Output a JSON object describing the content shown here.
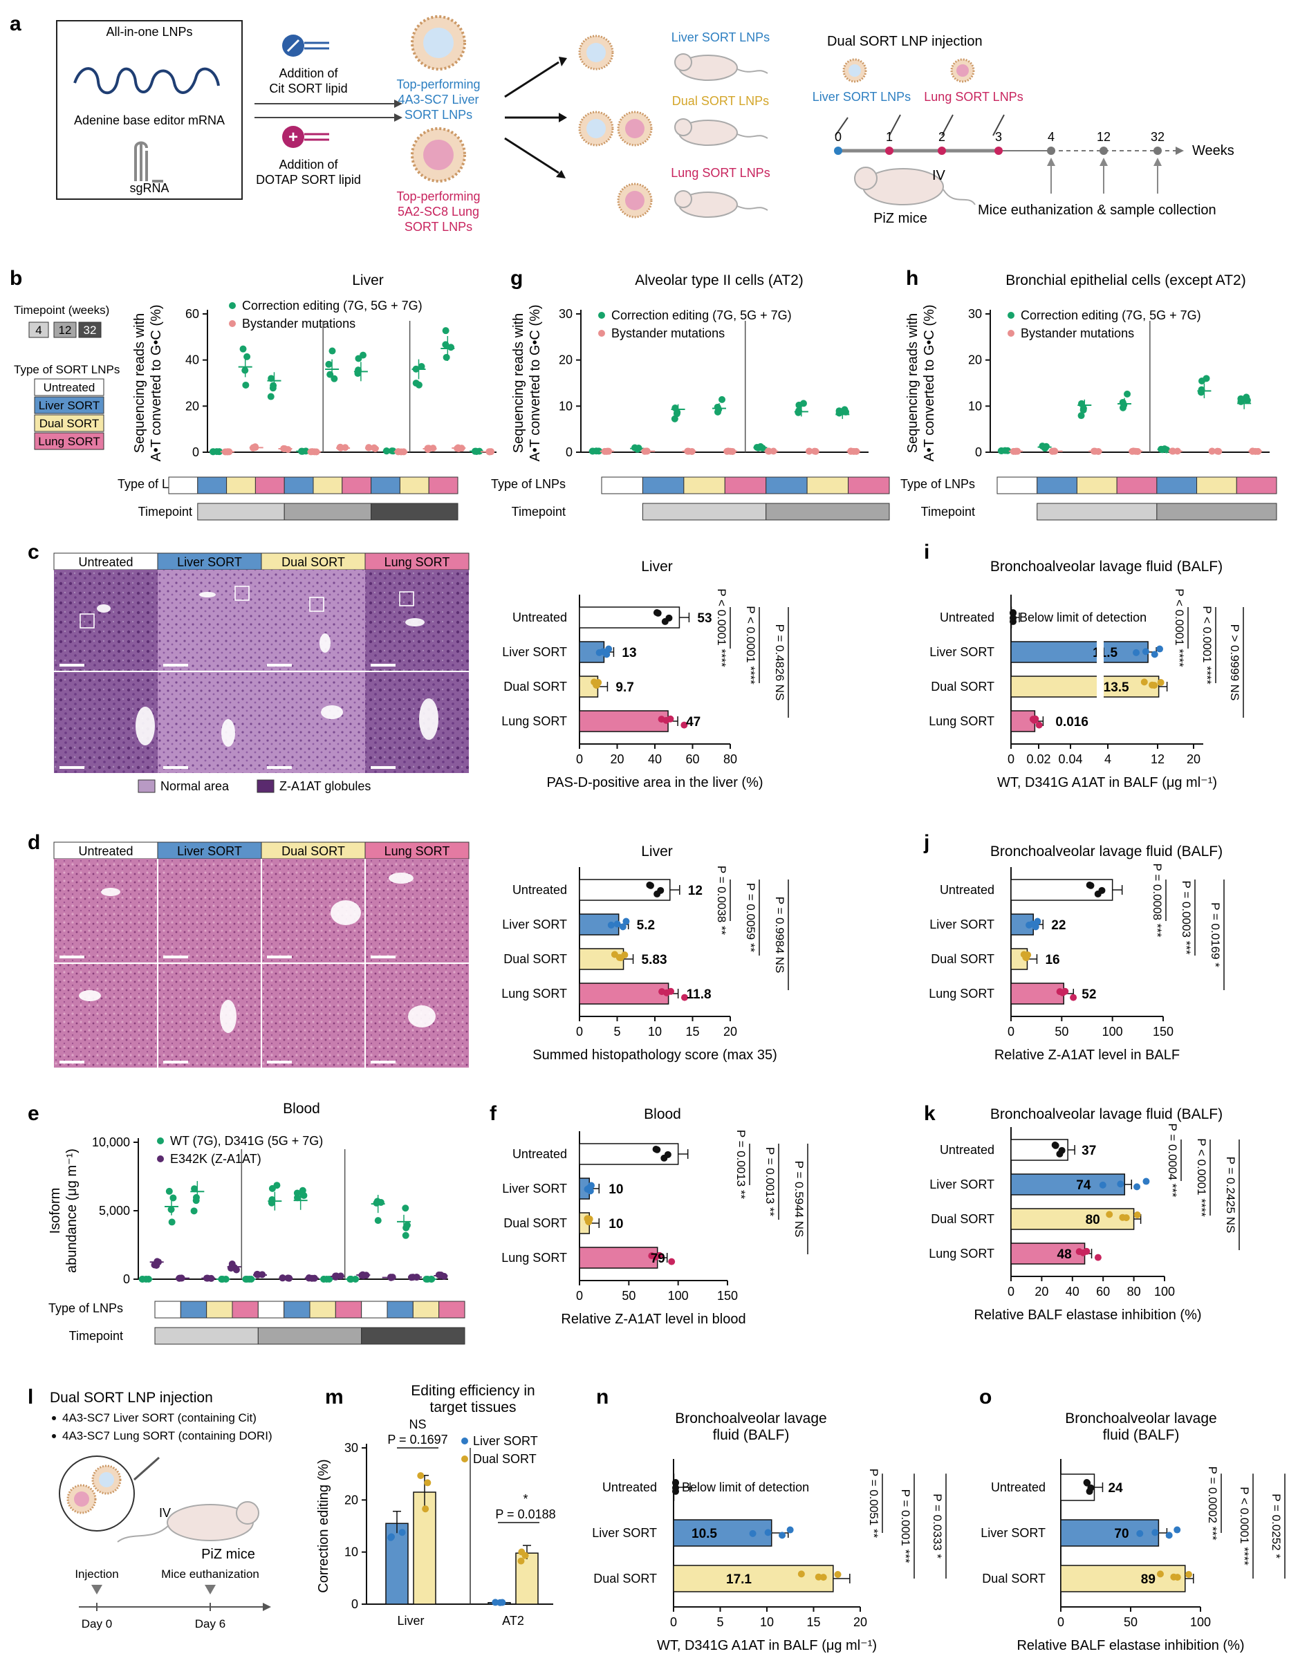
{
  "colors": {
    "untreated": "#ffffff",
    "liver": "#5b92c9",
    "dual": "#f5e7a8",
    "lung": "#e47aa2",
    "green": "#16a36a",
    "pink": "#e98f8f",
    "purple": "#5a2a6e",
    "black": "#111111",
    "histoPurple": "#8b5a9a",
    "liverDot": "#2f7ac4",
    "dualDot": "#d4a62a",
    "lungDot": "#c8245e",
    "greyL": "#d0d0d0",
    "greyM": "#a6a6a6",
    "greyD": "#4d4d4d"
  },
  "panel_letters": {
    "a": "a",
    "b": "b",
    "c": "c",
    "d": "d",
    "e": "e",
    "f": "f",
    "g": "g",
    "h": "h",
    "i": "i",
    "j": "j",
    "k": "k",
    "l": "l",
    "m": "m",
    "n": "n",
    "o": "o"
  },
  "panel_a": {
    "box_title": "All-in-one LNPs",
    "mrna": "Adenine base editor mRNA",
    "sgrna": "sgRNA",
    "add_cit": [
      "Addition of",
      "Cit SORT lipid"
    ],
    "add_dotap": [
      "Addition of",
      "DOTAP SORT lipid"
    ],
    "top_liver": [
      "Top-performing",
      "4A3-SC7 Liver",
      "SORT LNPs"
    ],
    "top_lung": [
      "Top-performing",
      "5A2-SC8 Lung",
      "SORT LNPs"
    ],
    "liver_sort": "Liver SORT LNPs",
    "dual_sort": "Dual SORT LNPs",
    "lung_sort": "Lung SORT LNPs",
    "dual_inj": "Dual SORT LNP injection",
    "liver_lbl": "Liver SORT LNPs",
    "lung_lbl": "Lung SORT LNPs",
    "weeks_ticks": [
      "0",
      "1",
      "2",
      "3",
      "4",
      "12",
      "32"
    ],
    "weeks": "Weeks",
    "iv": "IV",
    "piz": "PiZ mice",
    "euth": "Mice euthanization & sample collection"
  },
  "legend_b": {
    "timepoint_title": "Timepoint (weeks)",
    "timepoints": [
      "4",
      "12",
      "32"
    ],
    "type_title": "Type of SORT LNPs",
    "types": [
      "Untreated",
      "Liver SORT",
      "Dual SORT",
      "Lung SORT"
    ]
  },
  "chart_data": [
    {
      "id": "b",
      "type": "scatter",
      "title": "Liver",
      "ylabel": [
        "Sequencing reads with",
        "A•T converted to G•C (%)"
      ],
      "ylim": [
        0,
        60
      ],
      "yticks": [
        "0",
        "20",
        "40",
        "60"
      ],
      "legend": [
        "Correction editing (7G, 5G + 7G)",
        "Bystander mutations"
      ],
      "row_type": "Type of LNPs",
      "row_time": "Timepoint",
      "groups": [
        "4w Untreated",
        "4w Liver SORT",
        "4w Dual SORT",
        "4w Lung SORT",
        "12w Liver SORT",
        "12w Dual SORT",
        "12w Lung SORT",
        "32w Liver SORT",
        "32w Dual SORT",
        "32w Lung SORT"
      ],
      "correction_mean": [
        0.3,
        37,
        31,
        0.4,
        36,
        35,
        0.5,
        36,
        45,
        0.4
      ],
      "bystander_mean": [
        0.2,
        2,
        1.5,
        0.2,
        1.8,
        1.8,
        0.2,
        1.5,
        1.8,
        0.2
      ]
    },
    {
      "id": "g",
      "type": "scatter",
      "title": "Alveolar type II cells (AT2)",
      "ylabel": [
        "Sequencing reads with",
        "A•T converted to G•C (%)"
      ],
      "ylim": [
        0,
        30
      ],
      "yticks": [
        "0",
        "10",
        "20",
        "30"
      ],
      "legend": [
        "Correction editing (7G, 5G + 7G)",
        "Bystander mutations"
      ],
      "row_type": "Type of LNPs",
      "row_time": "Timepoint",
      "groups": [
        "4w Untreated",
        "4w Liver SORT",
        "4w Dual SORT",
        "4w Lung SORT",
        "12w Liver SORT",
        "12w Dual SORT",
        "12w Lung SORT"
      ],
      "correction_mean": [
        0.3,
        0.8,
        9.3,
        9.5,
        1.0,
        8.8,
        8.2
      ],
      "bystander_mean": [
        0.2,
        0.2,
        0.2,
        0.2,
        0.2,
        0.2,
        0.2
      ]
    },
    {
      "id": "h",
      "type": "scatter",
      "title": "Bronchial epithelial cells (except AT2)",
      "ylabel": [
        "Sequencing reads with",
        "A•T converted to G•C (%)"
      ],
      "ylim": [
        0,
        30
      ],
      "yticks": [
        "0",
        "10",
        "20",
        "30"
      ],
      "legend": [
        "Correction editing (7G, 5G + 7G)",
        "Bystander mutations"
      ],
      "row_type": "Type of LNPs",
      "row_time": "Timepoint",
      "groups": [
        "4w Untreated",
        "4w Liver SORT",
        "4w Dual SORT",
        "4w Lung SORT",
        "12w Liver SORT",
        "12w Dual SORT",
        "12w Lung SORT"
      ],
      "correction_mean": [
        0.4,
        1.1,
        10.2,
        10.5,
        0.6,
        13.3,
        10.6
      ],
      "bystander_mean": [
        0.2,
        0.2,
        0.2,
        0.2,
        0.2,
        0.2,
        0.2
      ]
    },
    {
      "id": "c_bar",
      "type": "bar",
      "title": "Liver",
      "xlabel": "PAS-D-positive area in the liver (%)",
      "xlim": [
        0,
        80
      ],
      "xticks": [
        "0",
        "20",
        "40",
        "60",
        "80"
      ],
      "categories": [
        "Untreated",
        "Liver SORT",
        "Dual SORT",
        "Lung SORT"
      ],
      "values": [
        53,
        13,
        9.7,
        47
      ],
      "labels": [
        "53",
        "13",
        "9.7",
        "47"
      ],
      "stats": [
        {
          "p": "P < 0.0001",
          "s": "****"
        },
        {
          "p": "P < 0.0001",
          "s": "****"
        },
        {
          "p": "P = 0.4826",
          "s": "NS"
        }
      ]
    },
    {
      "id": "d_bar",
      "type": "bar",
      "title": "Liver",
      "xlabel": "Summed histopathology score (max 35)",
      "xlim": [
        0,
        20
      ],
      "xticks": [
        "0",
        "5",
        "10",
        "15",
        "20"
      ],
      "categories": [
        "Untreated",
        "Liver SORT",
        "Dual SORT",
        "Lung SORT"
      ],
      "values": [
        12,
        5.2,
        5.83,
        11.8
      ],
      "labels": [
        "12",
        "5.2",
        "5.83",
        "11.8"
      ],
      "stats": [
        {
          "p": "P = 0.0038",
          "s": "**"
        },
        {
          "p": "P = 0.0059",
          "s": "**"
        },
        {
          "p": "P = 0.9984",
          "s": "NS"
        }
      ]
    },
    {
      "id": "e",
      "type": "scatter",
      "title": "Blood",
      "ylabel": [
        "Isoform",
        "abundance (μg m⁻¹)"
      ],
      "ylim": [
        0,
        10000
      ],
      "yticks": [
        "0",
        "5,000",
        "10,000"
      ],
      "legend": [
        "WT (7G), D341G (5G + 7G)",
        "E342K (Z-A1AT)"
      ],
      "row_type": "Type of LNPs",
      "row_time": "Timepoint",
      "groups": [
        "4w Untreated",
        "4w Liver SORT",
        "4w Dual SORT",
        "4w Lung SORT",
        "12w Untreated",
        "12w Liver SORT",
        "12w Dual SORT",
        "12w Lung SORT",
        "32w Untreated",
        "32w Liver SORT",
        "32w Dual SORT",
        "32w Lung SORT"
      ],
      "wt_mean": [
        0,
        5300,
        6400,
        0,
        0,
        5700,
        5750,
        0,
        0,
        5500,
        4200,
        0
      ],
      "z_mean": [
        1250,
        70,
        70,
        900,
        300,
        80,
        80,
        200,
        300,
        120,
        150,
        250
      ]
    },
    {
      "id": "f",
      "type": "bar",
      "title": "Blood",
      "xlabel": "Relative Z-A1AT level in blood",
      "xlim": [
        0,
        150
      ],
      "xticks": [
        "0",
        "50",
        "100",
        "150"
      ],
      "categories": [
        "Untreated",
        "Liver SORT",
        "Dual SORT",
        "Lung SORT"
      ],
      "values": [
        100,
        10,
        10,
        79
      ],
      "labels": [
        "",
        "10",
        "10",
        "79"
      ],
      "stats": [
        {
          "p": "P = 0.0013",
          "s": "**"
        },
        {
          "p": "P = 0.0013",
          "s": "**"
        },
        {
          "p": "P = 0.5944",
          "s": "NS"
        }
      ]
    },
    {
      "id": "i",
      "type": "bar",
      "title": "Bronchoalveolar lavage fluid (BALF)",
      "xlabel": "WT, D341G A1AT in BALF (μg ml⁻¹)",
      "xticks": [
        "0",
        "0.02",
        "0.04",
        "4",
        "12",
        "20"
      ],
      "categories": [
        "Untreated",
        "Liver SORT",
        "Dual SORT",
        "Lung SORT"
      ],
      "values": [
        0,
        11.5,
        13.5,
        0.016
      ],
      "labels": [
        "",
        "11.5",
        "13.5",
        "0.016"
      ],
      "note": "Below limit of detection",
      "stats": [
        {
          "p": "P < 0.0001",
          "s": "****"
        },
        {
          "p": "P < 0.0001",
          "s": "****"
        },
        {
          "p": "P > 0.9999",
          "s": "NS"
        }
      ]
    },
    {
      "id": "j",
      "type": "bar",
      "title": "Bronchoalveolar lavage fluid (BALF)",
      "xlabel": "Relative Z-A1AT level in BALF",
      "xlim": [
        0,
        150
      ],
      "xticks": [
        "0",
        "50",
        "100",
        "150"
      ],
      "categories": [
        "Untreated",
        "Liver SORT",
        "Dual SORT",
        "Lung SORT"
      ],
      "values": [
        100,
        22,
        16,
        52
      ],
      "labels": [
        "",
        "22",
        "16",
        "52"
      ],
      "stats": [
        {
          "p": "P = 0.0008",
          "s": "***"
        },
        {
          "p": "P = 0.0003",
          "s": "***"
        },
        {
          "p": "P = 0.0169",
          "s": "*"
        }
      ]
    },
    {
      "id": "k",
      "type": "bar",
      "title": "Bronchoalveolar lavage fluid (BALF)",
      "xlabel": "Relative BALF elastase inhibition (%)",
      "xlim": [
        0,
        100
      ],
      "xticks": [
        "0",
        "20",
        "40",
        "60",
        "80",
        "100"
      ],
      "categories": [
        "Untreated",
        "Liver SORT",
        "Dual SORT",
        "Lung SORT"
      ],
      "values": [
        37,
        74,
        80,
        48
      ],
      "labels": [
        "37",
        "74",
        "80",
        "48"
      ],
      "stats": [
        {
          "p": "P = 0.0004",
          "s": "***"
        },
        {
          "p": "P < 0.0001",
          "s": "****"
        },
        {
          "p": "P = 0.2425",
          "s": "NS"
        }
      ]
    },
    {
      "id": "m",
      "type": "bar",
      "title": [
        "Editing efficiency in",
        "target tissues"
      ],
      "ylabel": "Correction editing (%)",
      "ylim": [
        0,
        30
      ],
      "yticks": [
        "0",
        "10",
        "20",
        "30"
      ],
      "categories": [
        "Liver",
        "AT2"
      ],
      "series": [
        {
          "name": "Liver SORT",
          "values": [
            15.5,
            0.3
          ]
        },
        {
          "name": "Dual SORT",
          "values": [
            21.5,
            9.8
          ]
        }
      ],
      "stats": [
        {
          "p": "P = 0.1697",
          "s": "NS"
        },
        {
          "p": "P = 0.0188",
          "s": "*"
        }
      ]
    },
    {
      "id": "n",
      "type": "bar",
      "title": [
        "Bronchoalveolar lavage",
        "fluid (BALF)"
      ],
      "xlabel": "WT, D341G A1AT  in BALF (μg ml⁻¹)",
      "xlim": [
        0,
        20
      ],
      "xticks": [
        "0",
        "5",
        "10",
        "15",
        "20"
      ],
      "categories": [
        "Untreated",
        "Liver SORT",
        "Dual SORT"
      ],
      "values": [
        0,
        10.5,
        17.1
      ],
      "labels": [
        "",
        "10.5",
        "17.1"
      ],
      "note": "Below limit of detection",
      "stats": [
        {
          "p": "P = 0.0051",
          "s": "**"
        },
        {
          "p": "P = 0.0001",
          "s": "***"
        },
        {
          "p": "P = 0.0333",
          "s": "*"
        }
      ]
    },
    {
      "id": "o",
      "type": "bar",
      "title": [
        "Bronchoalveolar lavage",
        "fluid (BALF)"
      ],
      "xlabel": "Relative BALF elastase inhibition (%)",
      "xlim": [
        0,
        100
      ],
      "xticks": [
        "0",
        "50",
        "100"
      ],
      "categories": [
        "Untreated",
        "Liver SORT",
        "Dual SORT"
      ],
      "values": [
        24,
        70,
        89
      ],
      "labels": [
        "24",
        "70",
        "89"
      ],
      "stats": [
        {
          "p": "P = 0.0002",
          "s": "***"
        },
        {
          "p": "P < 0.0001",
          "s": "****"
        },
        {
          "p": "P = 0.0252",
          "s": "*"
        }
      ]
    }
  ],
  "panel_c": {
    "headers": [
      "Untreated",
      "Liver SORT",
      "Dual SORT",
      "Lung SORT"
    ],
    "legend": [
      "Normal area",
      "Z-A1AT globules"
    ]
  },
  "panel_d": {
    "headers": [
      "Untreated",
      "Liver SORT",
      "Dual SORT",
      "Lung SORT"
    ]
  },
  "panel_l": {
    "title": "Dual SORT LNP injection",
    "bullets": [
      "4A3-SC7 Liver SORT (containing Cit)",
      "4A3-SC7 Lung SORT (containing DORI)"
    ],
    "iv": "IV",
    "piz": "PiZ mice",
    "injection": "Injection",
    "euth": "Mice euthanization",
    "day0": "Day 0",
    "day6": "Day 6"
  }
}
